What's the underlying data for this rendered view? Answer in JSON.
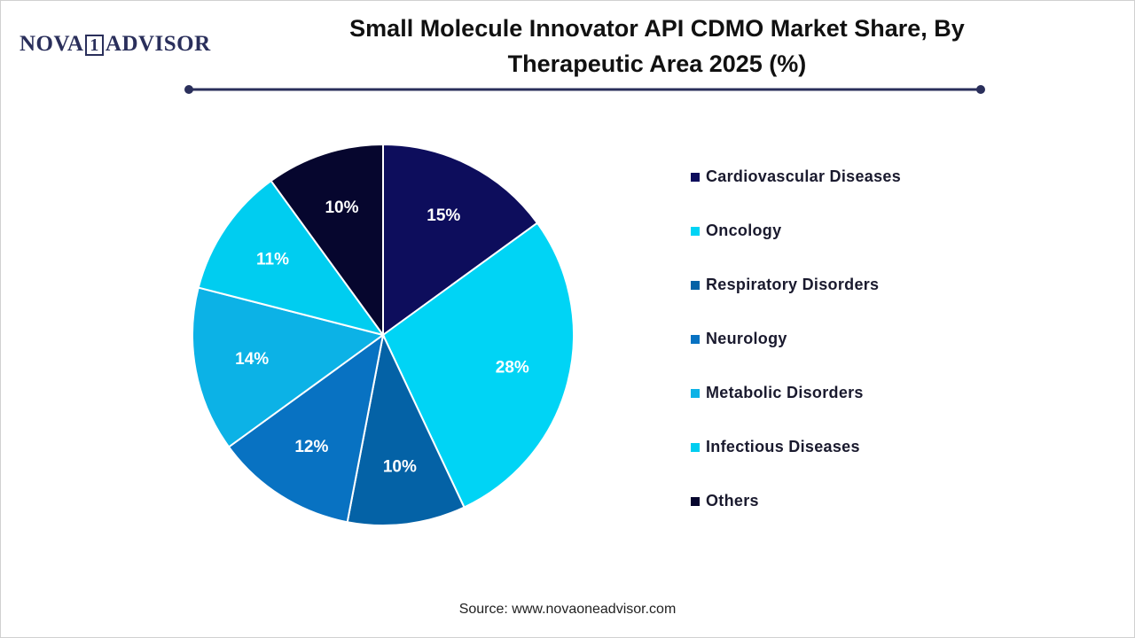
{
  "logo": {
    "left": "NOVA",
    "mark": "1",
    "right": "ADVISOR"
  },
  "chart_data": {
    "type": "pie",
    "title": "Small Molecule Innovator API CDMO Market Share, By Therapeutic Area 2025 (%)",
    "categories": [
      "Cardiovascular Diseases",
      "Oncology",
      "Respiratory Disorders",
      "Neurology",
      "Metabolic Disorders",
      "Infectious Diseases",
      "Others"
    ],
    "values": [
      15,
      28,
      10,
      12,
      14,
      11,
      10
    ],
    "value_labels": [
      "15%",
      "28%",
      "10%",
      "12%",
      "14%",
      "11%",
      "10%"
    ],
    "colors": [
      "#0d0d5c",
      "#00d4f5",
      "#0462a6",
      "#0872c2",
      "#0cb2e6",
      "#00cdf0",
      "#06062e"
    ],
    "legend": "right",
    "source": "Source: www.novaoneadvisor.com"
  }
}
